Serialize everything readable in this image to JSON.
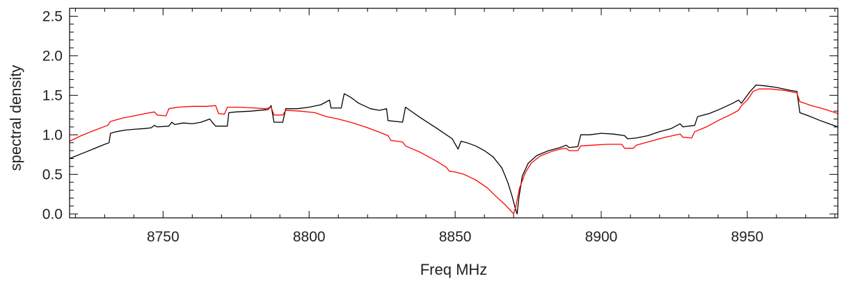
{
  "chart_data": {
    "type": "line",
    "title": "",
    "xlabel": "Freq MHz",
    "ylabel": "spectral density",
    "xlim": [
      8718,
      8981
    ],
    "ylim": [
      -0.05,
      2.6
    ],
    "x_ticks": [
      8750,
      8800,
      8850,
      8900,
      8950
    ],
    "x_tick_labels": [
      "8750",
      "8800",
      "8850",
      "8900",
      "8950"
    ],
    "y_ticks": [
      0.0,
      0.5,
      1.0,
      1.5,
      2.0,
      2.5
    ],
    "y_tick_labels": [
      "0.0",
      "0.5",
      "1.0",
      "1.5",
      "2.0",
      "2.5"
    ],
    "grid": false,
    "legend": false,
    "series": [
      {
        "color": "#000000",
        "points": [
          [
            8718,
            0.7
          ],
          [
            8722,
            0.76
          ],
          [
            8726,
            0.82
          ],
          [
            8730,
            0.88
          ],
          [
            8731.5,
            0.9
          ],
          [
            8732,
            1.02
          ],
          [
            8734,
            1.04
          ],
          [
            8737,
            1.06
          ],
          [
            8740,
            1.07
          ],
          [
            8744,
            1.08
          ],
          [
            8746,
            1.09
          ],
          [
            8747,
            1.12
          ],
          [
            8748,
            1.1
          ],
          [
            8752,
            1.11
          ],
          [
            8753,
            1.16
          ],
          [
            8754,
            1.13
          ],
          [
            8757,
            1.15
          ],
          [
            8760,
            1.14
          ],
          [
            8763,
            1.16
          ],
          [
            8766,
            1.2
          ],
          [
            8767,
            1.15
          ],
          [
            8768,
            1.11
          ],
          [
            8772,
            1.11
          ],
          [
            8772.5,
            1.28
          ],
          [
            8775,
            1.29
          ],
          [
            8780,
            1.3
          ],
          [
            8786,
            1.32
          ],
          [
            8787,
            1.37
          ],
          [
            8788,
            1.16
          ],
          [
            8791,
            1.16
          ],
          [
            8792,
            1.33
          ],
          [
            8796,
            1.33
          ],
          [
            8800,
            1.35
          ],
          [
            8804,
            1.38
          ],
          [
            8806,
            1.42
          ],
          [
            8807,
            1.44
          ],
          [
            8807.5,
            1.34
          ],
          [
            8811,
            1.34
          ],
          [
            8812,
            1.52
          ],
          [
            8814,
            1.48
          ],
          [
            8817,
            1.4
          ],
          [
            8821,
            1.33
          ],
          [
            8824,
            1.31
          ],
          [
            8826.5,
            1.33
          ],
          [
            8827,
            1.18
          ],
          [
            8832,
            1.16
          ],
          [
            8833,
            1.35
          ],
          [
            8838,
            1.22
          ],
          [
            8843,
            1.1
          ],
          [
            8847,
            1.0
          ],
          [
            8849,
            0.95
          ],
          [
            8851,
            0.82
          ],
          [
            8852,
            0.92
          ],
          [
            8854,
            0.9
          ],
          [
            8857,
            0.86
          ],
          [
            8860,
            0.8
          ],
          [
            8863,
            0.72
          ],
          [
            8866,
            0.58
          ],
          [
            8868,
            0.4
          ],
          [
            8869.5,
            0.22
          ],
          [
            8870.5,
            0.08
          ],
          [
            8871.2,
            0.0
          ],
          [
            8871.8,
            0.2
          ],
          [
            8873,
            0.48
          ],
          [
            8875,
            0.64
          ],
          [
            8878,
            0.74
          ],
          [
            8882,
            0.8
          ],
          [
            8886,
            0.84
          ],
          [
            8888,
            0.87
          ],
          [
            8889,
            0.84
          ],
          [
            8892,
            0.85
          ],
          [
            8893,
            1.0
          ],
          [
            8896,
            1.0
          ],
          [
            8900,
            1.02
          ],
          [
            8904,
            1.01
          ],
          [
            8908,
            0.99
          ],
          [
            8909,
            0.95
          ],
          [
            8912,
            0.96
          ],
          [
            8916,
            0.99
          ],
          [
            8920,
            1.04
          ],
          [
            8924,
            1.08
          ],
          [
            8927,
            1.14
          ],
          [
            8928,
            1.1
          ],
          [
            8932,
            1.12
          ],
          [
            8933,
            1.23
          ],
          [
            8937,
            1.27
          ],
          [
            8941,
            1.33
          ],
          [
            8945,
            1.4
          ],
          [
            8947,
            1.44
          ],
          [
            8948,
            1.4
          ],
          [
            8951,
            1.55
          ],
          [
            8953,
            1.63
          ],
          [
            8956,
            1.62
          ],
          [
            8960,
            1.6
          ],
          [
            8965,
            1.56
          ],
          [
            8967,
            1.55
          ],
          [
            8968,
            1.28
          ],
          [
            8971,
            1.24
          ],
          [
            8975,
            1.18
          ],
          [
            8978,
            1.14
          ],
          [
            8981,
            1.1
          ]
        ]
      },
      {
        "color": "#ff0000",
        "points": [
          [
            8718,
            0.92
          ],
          [
            8722,
            0.99
          ],
          [
            8726,
            1.05
          ],
          [
            8731,
            1.12
          ],
          [
            8732,
            1.17
          ],
          [
            8736,
            1.21
          ],
          [
            8740,
            1.24
          ],
          [
            8744,
            1.27
          ],
          [
            8747,
            1.29
          ],
          [
            8748,
            1.25
          ],
          [
            8751,
            1.24
          ],
          [
            8752,
            1.33
          ],
          [
            8755,
            1.35
          ],
          [
            8760,
            1.36
          ],
          [
            8765,
            1.36
          ],
          [
            8768,
            1.37
          ],
          [
            8769,
            1.27
          ],
          [
            8771,
            1.26
          ],
          [
            8772,
            1.35
          ],
          [
            8776,
            1.35
          ],
          [
            8781,
            1.34
          ],
          [
            8785,
            1.33
          ],
          [
            8787,
            1.35
          ],
          [
            8788,
            1.25
          ],
          [
            8791,
            1.25
          ],
          [
            8792,
            1.31
          ],
          [
            8797,
            1.3
          ],
          [
            8802,
            1.28
          ],
          [
            8806,
            1.23
          ],
          [
            8810,
            1.2
          ],
          [
            8815,
            1.15
          ],
          [
            8820,
            1.09
          ],
          [
            8825,
            1.02
          ],
          [
            8827,
            0.99
          ],
          [
            8828,
            0.93
          ],
          [
            8830,
            0.92
          ],
          [
            8832,
            0.91
          ],
          [
            8833,
            0.86
          ],
          [
            8838,
            0.78
          ],
          [
            8843,
            0.68
          ],
          [
            8847,
            0.59
          ],
          [
            8848,
            0.54
          ],
          [
            8850,
            0.53
          ],
          [
            8853,
            0.5
          ],
          [
            8857,
            0.43
          ],
          [
            8861,
            0.33
          ],
          [
            8864,
            0.22
          ],
          [
            8867,
            0.12
          ],
          [
            8869,
            0.04
          ],
          [
            8870,
            0.0
          ],
          [
            8870.8,
            0.1
          ],
          [
            8872,
            0.32
          ],
          [
            8874,
            0.52
          ],
          [
            8876,
            0.64
          ],
          [
            8879,
            0.73
          ],
          [
            8883,
            0.79
          ],
          [
            8886,
            0.82
          ],
          [
            8888,
            0.83
          ],
          [
            8889,
            0.8
          ],
          [
            8892,
            0.8
          ],
          [
            8893,
            0.86
          ],
          [
            8897,
            0.87
          ],
          [
            8902,
            0.88
          ],
          [
            8907,
            0.88
          ],
          [
            8908,
            0.83
          ],
          [
            8911,
            0.83
          ],
          [
            8912,
            0.87
          ],
          [
            8917,
            0.92
          ],
          [
            8922,
            0.97
          ],
          [
            8927,
            1.01
          ],
          [
            8928,
            0.97
          ],
          [
            8931,
            0.96
          ],
          [
            8932,
            1.04
          ],
          [
            8936,
            1.1
          ],
          [
            8940,
            1.18
          ],
          [
            8944,
            1.25
          ],
          [
            8947,
            1.31
          ],
          [
            8948,
            1.37
          ],
          [
            8950,
            1.44
          ],
          [
            8952,
            1.55
          ],
          [
            8954,
            1.58
          ],
          [
            8958,
            1.58
          ],
          [
            8963,
            1.56
          ],
          [
            8967,
            1.53
          ],
          [
            8968,
            1.42
          ],
          [
            8972,
            1.37
          ],
          [
            8976,
            1.33
          ],
          [
            8981,
            1.27
          ]
        ]
      }
    ]
  }
}
